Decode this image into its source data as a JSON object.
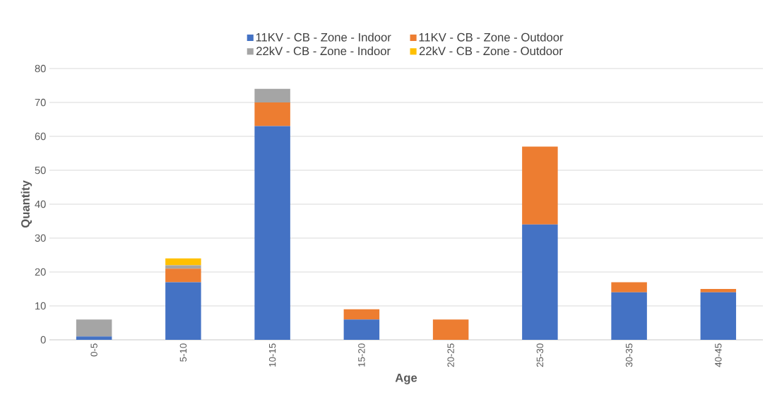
{
  "chart_data": {
    "type": "bar",
    "stacked": true,
    "xlabel": "Age",
    "ylabel": "Quantity",
    "categories": [
      "0-5",
      "5-10",
      "10-15",
      "15-20",
      "20-25",
      "25-30",
      "30-35",
      "40-45"
    ],
    "series": [
      {
        "name": "11KV - CB - Zone - Indoor",
        "color": "#4472c4",
        "values": [
          1,
          17,
          63,
          6,
          0,
          34,
          14,
          14
        ]
      },
      {
        "name": "11KV - CB - Zone - Outdoor",
        "color": "#ed7d31",
        "values": [
          0,
          4,
          7,
          3,
          6,
          23,
          3,
          1
        ]
      },
      {
        "name": "22kV - CB - Zone - Indoor",
        "color": "#a5a5a5",
        "values": [
          5,
          1,
          4,
          0,
          0,
          0,
          0,
          0
        ]
      },
      {
        "name": "22kV - CB - Zone - Outdoor",
        "color": "#ffc000",
        "values": [
          0,
          2,
          0,
          0,
          0,
          0,
          0,
          0
        ]
      }
    ],
    "ylim": [
      0,
      80
    ],
    "yticks": [
      0,
      10,
      20,
      30,
      40,
      50,
      60,
      70,
      80
    ],
    "grid": "y",
    "legend": "top"
  }
}
